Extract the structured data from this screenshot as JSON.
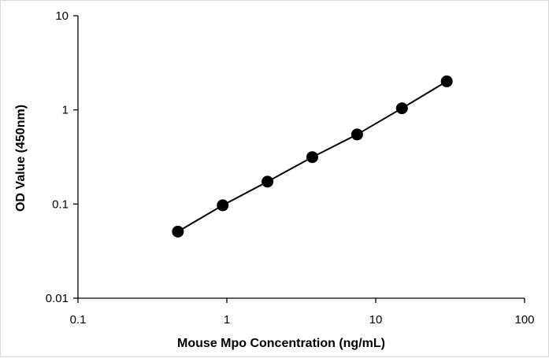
{
  "chart_data": {
    "type": "scatter",
    "title": "",
    "xlabel": "Mouse Mpo Concentration (ng/mL)",
    "ylabel": "OD Value (450nm)",
    "x_scale": "log",
    "y_scale": "log",
    "xlim": [
      0.1,
      100
    ],
    "ylim": [
      0.01,
      10
    ],
    "x_ticks": [
      "0.1",
      "1",
      "10",
      "100"
    ],
    "y_ticks": [
      "0.01",
      "0.1",
      "1",
      "10"
    ],
    "grid": false,
    "legend": "none",
    "series": [
      {
        "x": [
          0.469,
          0.938,
          1.875,
          3.75,
          7.5,
          15,
          30
        ],
        "y": [
          0.051,
          0.097,
          0.173,
          0.315,
          0.548,
          1.04,
          2.01
        ],
        "marker": "circle",
        "line": "straight fit",
        "color": "#000000"
      }
    ]
  }
}
